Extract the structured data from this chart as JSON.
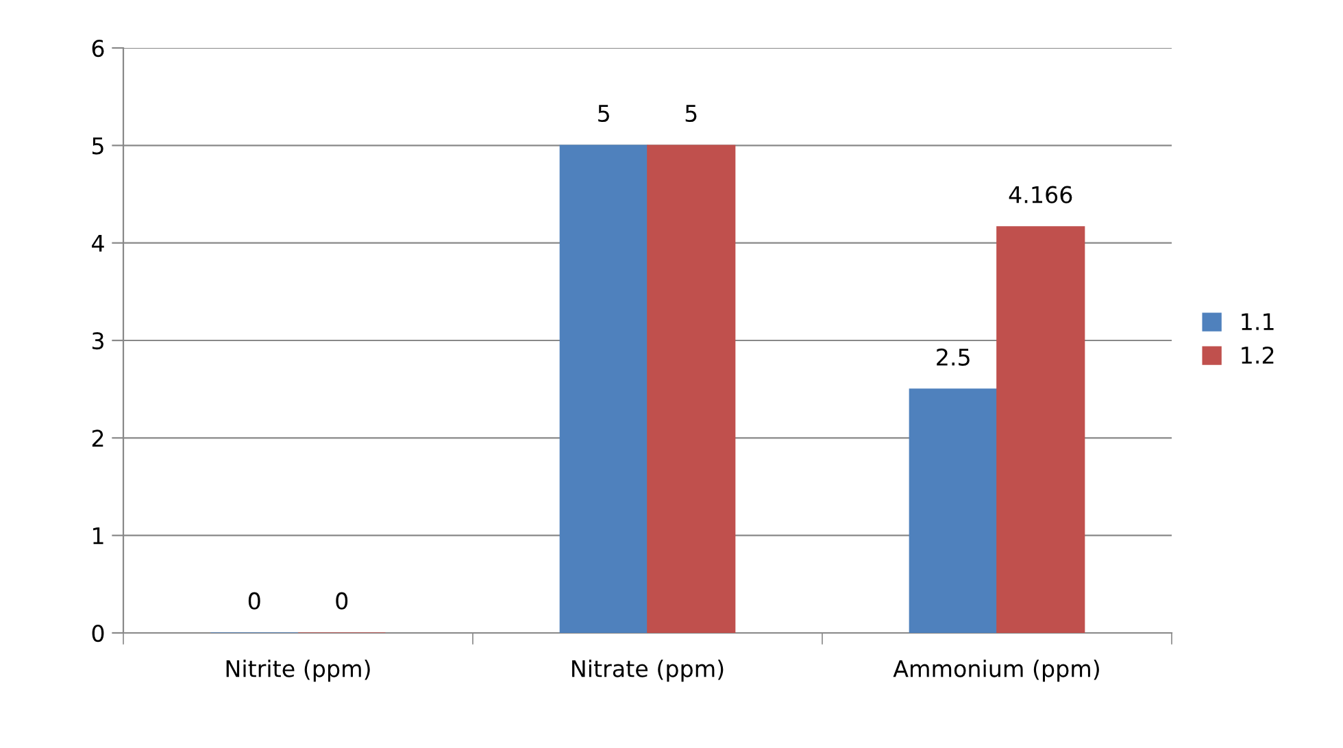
{
  "chart_data": {
    "type": "bar",
    "categories": [
      "Nitrite (ppm)",
      "Nitrate (ppm)",
      "Ammonium (ppm)"
    ],
    "series": [
      {
        "name": "1.1",
        "color": "#4f81bd",
        "values": [
          0,
          5,
          2.5
        ]
      },
      {
        "name": "1.2",
        "color": "#c0504d",
        "values": [
          0,
          5,
          4.166
        ]
      }
    ],
    "ylim": [
      0,
      6
    ],
    "yticks": [
      0,
      1,
      2,
      3,
      4,
      5,
      6
    ],
    "grid": "y",
    "legend": "right",
    "data_labels": true
  }
}
